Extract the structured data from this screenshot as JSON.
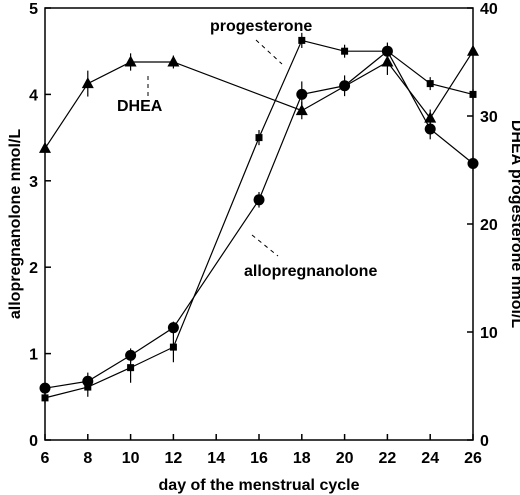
{
  "chart_data": {
    "type": "line",
    "xlabel": "day of the menstrual cycle",
    "ylabel_left": "allopregnanolone   nmol/L",
    "ylabel_right": "DHEA  progesterone  nmol/L",
    "x_ticks": [
      "6",
      "8",
      "10",
      "12",
      "14",
      "16",
      "18",
      "20",
      "22",
      "24",
      "26"
    ],
    "xlim": [
      6,
      26
    ],
    "y_left_ticks": [
      "0",
      "1",
      "2",
      "3",
      "4",
      "5"
    ],
    "ylim_left": [
      0,
      5
    ],
    "y_right_ticks": [
      "0",
      "10",
      "20",
      "30",
      "40"
    ],
    "ylim_right": [
      0,
      40
    ],
    "grid": false,
    "series": [
      {
        "name": "allopregnanolone",
        "axis": "left",
        "marker": "circle",
        "x": [
          6,
          8,
          10,
          12,
          16,
          18,
          20,
          22,
          24,
          26
        ],
        "y": [
          0.6,
          0.68,
          0.98,
          1.3,
          2.78,
          4.0,
          4.1,
          4.5,
          3.6,
          3.2
        ],
        "err": [
          0.05,
          0.1,
          0.08,
          0.07,
          0.09,
          0.15,
          0.12,
          0.1,
          0.12,
          0.08
        ]
      },
      {
        "name": "progesterone",
        "axis": "right",
        "marker": "square",
        "x": [
          6,
          8,
          10,
          12,
          16,
          18,
          20,
          22,
          24,
          26
        ],
        "y": [
          3.9,
          4.9,
          6.7,
          8.6,
          28,
          37,
          36,
          36,
          33,
          32
        ],
        "err": [
          0.5,
          0.9,
          1.4,
          1.4,
          0.7,
          0.7,
          0.6,
          0.5,
          0.6,
          0.5
        ]
      },
      {
        "name": "DHEA",
        "axis": "right",
        "marker": "triangle",
        "x": [
          6,
          8,
          10,
          12,
          18,
          22,
          24,
          26
        ],
        "y": [
          27,
          33,
          35,
          35,
          30.5,
          35,
          29.8,
          36
        ],
        "err": [
          0,
          1.2,
          0.8,
          0.6,
          0.8,
          1.2,
          0.8,
          0
        ]
      }
    ],
    "annotations": [
      "progesterone",
      "DHEA",
      "allopregnanolone"
    ]
  }
}
